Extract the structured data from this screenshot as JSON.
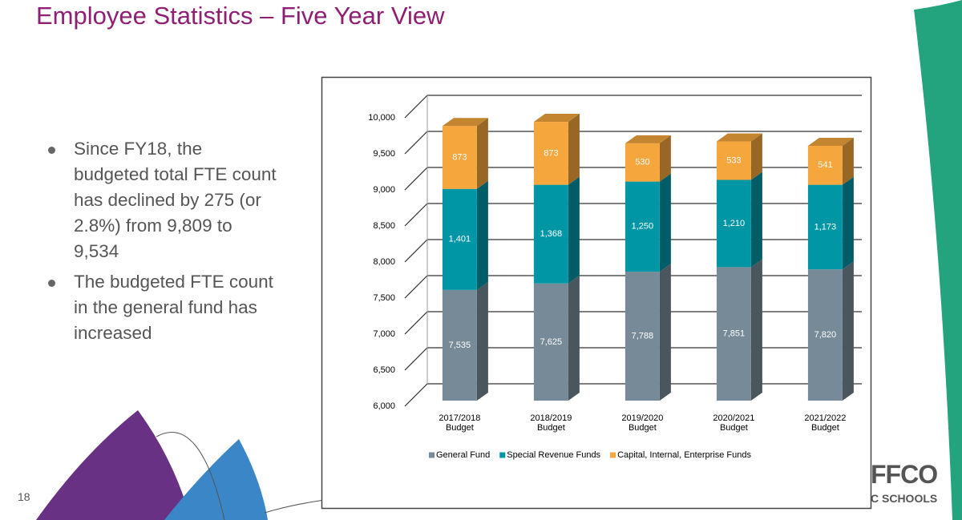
{
  "slide": {
    "title": "Employee Statistics – Five Year View",
    "bullets": [
      "Since FY18, the budgeted total FTE count has declined by 275 (or 2.8%) from 9,809 to 9,534",
      "The budgeted FTE count in the general fund has increased"
    ],
    "page_number": "18",
    "logo": [
      "FFCO",
      "C SCHOOLS"
    ]
  },
  "chart_data": {
    "type": "stacked_bar_3d",
    "categories": [
      "2017/2018 Budget",
      "2018/2019 Budget",
      "2019/2020 Budget",
      "2020/2021 Budget",
      "2021/2022 Budget"
    ],
    "series": [
      {
        "name": "General Fund",
        "color": "#778a97",
        "values": [
          7535,
          7625,
          7788,
          7851,
          7820
        ],
        "value_labels": [
          "7,535",
          "7,625",
          "7,788",
          "7,851",
          "7,820"
        ]
      },
      {
        "name": "Special Revenue Funds",
        "color": "#0096a6",
        "values": [
          1401,
          1368,
          1250,
          1210,
          1173
        ],
        "value_labels": [
          "1,401",
          "1,368",
          "1,250",
          "1,210",
          "1,173"
        ]
      },
      {
        "name": "Capital, Internal, Enterprise Funds",
        "color": "#f5a63c",
        "values": [
          873,
          873,
          530,
          533,
          541
        ]
      }
    ],
    "ylim": [
      6000,
      10000
    ],
    "yticks": [
      {
        "value": 6000,
        "label": "6,000"
      },
      {
        "value": 6500,
        "label": "6,500"
      },
      {
        "value": 7000,
        "label": "7,000"
      },
      {
        "value": 7500,
        "label": "7,500"
      },
      {
        "value": 8000,
        "label": "8,000"
      },
      {
        "value": 8500,
        "label": "8,500"
      },
      {
        "value": 9000,
        "label": "9,000"
      },
      {
        "value": 9500,
        "label": "9,500"
      },
      {
        "value": 10000,
        "label": "10,000"
      }
    ],
    "grid": true,
    "legend": "bottom"
  }
}
